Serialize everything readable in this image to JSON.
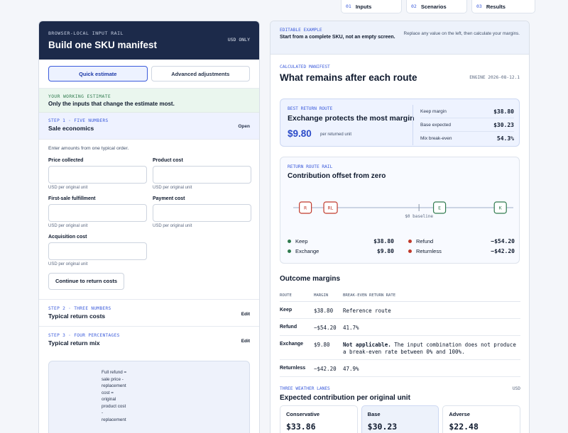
{
  "top_steps": [
    {
      "num": "01",
      "label": "Inputs"
    },
    {
      "num": "02",
      "label": "Scenarios"
    },
    {
      "num": "03",
      "label": "Results"
    }
  ],
  "left": {
    "eyebrow": "BROWSER-LOCAL INPUT RAIL",
    "title": "Build one SKU manifest",
    "currency": "USD ONLY",
    "modes": [
      "Quick estimate",
      "Advanced adjustments"
    ],
    "working": {
      "eyebrow": "YOUR WORKING ESTIMATE",
      "text": "Only the inputs that change the estimate most."
    },
    "step1": {
      "eyebrow": "STEP 1 · FIVE NUMBERS",
      "title": "Sale economics",
      "action": "Open",
      "intro": "Enter amounts from one typical order.",
      "fields": [
        {
          "label": "Price collected",
          "hint": "USD per original unit"
        },
        {
          "label": "Product cost",
          "hint": "USD per original unit"
        },
        {
          "label": "First-sale fulfillment",
          "hint": "USD per original unit"
        },
        {
          "label": "Payment cost",
          "hint": "USD per original unit"
        },
        {
          "label": "Acquisition cost",
          "hint": "USD per original unit"
        }
      ],
      "continue_label": "Continue to return costs"
    },
    "step2": {
      "eyebrow": "STEP 2 · THREE NUMBERS",
      "title": "Typical return costs",
      "action": "Edit"
    },
    "step3": {
      "eyebrow": "STEP 3 · FOUR PERCENTAGES",
      "title": "Typical return mix",
      "action": "Edit"
    },
    "formula": [
      "Full refund =",
      "sale price -",
      "replacement",
      "cost =",
      "original",
      "product cost",
      "-",
      "replacement"
    ]
  },
  "right": {
    "editable": {
      "eyebrow": "EDITABLE EXAMPLE",
      "text": "Start from a complete SKU, not an empty screen.",
      "side": "Replace any value on the left, then calculate your margins."
    },
    "manifest": {
      "eyebrow": "CALCULATED MANIFEST",
      "title": "What remains after each route",
      "engine": "ENGINE 2026-08-12.1"
    },
    "best": {
      "eyebrow": "BEST RETURN ROUTE",
      "title": "Exchange protects the most margin",
      "value": "$9.80",
      "per": "per returned unit",
      "kv": [
        {
          "k": "Keep margin",
          "v": "$38.80"
        },
        {
          "k": "Base expected",
          "v": "$30.23"
        },
        {
          "k": "Mix break-even",
          "v": "54.3%"
        }
      ]
    },
    "rail": {
      "eyebrow": "RETURN ROUTE RAIL",
      "title": "Contribution offset from zero",
      "baseline_label": "$0 baseline",
      "legend": [
        {
          "name": "Keep",
          "value": "$38.80",
          "color": "#2f7a4e"
        },
        {
          "name": "Refund",
          "value": "−$54.20",
          "color": "#c0392b"
        },
        {
          "name": "Exchange",
          "value": "$9.80",
          "color": "#2f7a4e"
        },
        {
          "name": "Returnless",
          "value": "−$42.20",
          "color": "#c0392b"
        }
      ],
      "markers": [
        {
          "label": "R",
          "value": -54.2,
          "color": "#c0392b"
        },
        {
          "label": "RL",
          "value": -42.2,
          "color": "#c0392b"
        },
        {
          "label": "E",
          "value": 9.8,
          "color": "#2f7a4e"
        },
        {
          "label": "K",
          "value": 38.8,
          "color": "#2f7a4e"
        }
      ],
      "range": [
        -60,
        45
      ]
    },
    "outcome": {
      "title": "Outcome margins",
      "headers": [
        "ROUTE",
        "MARGIN",
        "BREAK-EVEN RETURN RATE"
      ],
      "rows": [
        {
          "route": "Keep",
          "margin": "$38.80",
          "rate_bold": "",
          "rate": "Reference route"
        },
        {
          "route": "Refund",
          "margin": "−$54.20",
          "rate_bold": "",
          "rate": "41.7%"
        },
        {
          "route": "Exchange",
          "margin": "$9.80",
          "rate_bold": "Not applicable.",
          "rate": " The input combination does not produce a break-even rate between 0% and 100%."
        },
        {
          "route": "Returnless",
          "margin": "−$42.20",
          "rate_bold": "",
          "rate": "47.9%"
        }
      ]
    },
    "weather": {
      "eyebrow": "THREE WEATHER LANES",
      "currency": "USD",
      "title": "Expected contribution per original unit",
      "lanes": [
        {
          "name": "Conservative",
          "value": "$33.86"
        },
        {
          "name": "Base",
          "value": "$30.23"
        },
        {
          "name": "Adverse",
          "value": "$22.48"
        }
      ]
    }
  }
}
